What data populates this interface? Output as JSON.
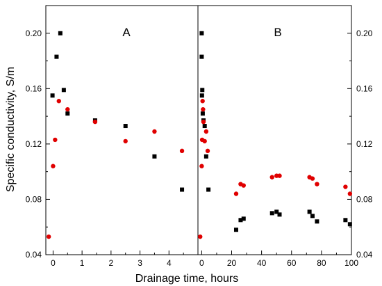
{
  "chart_data": {
    "type": "scatter",
    "xlabel": "Drainage time, hours",
    "ylabel": "Specific conductivity, S/m",
    "ylim": [
      0.04,
      0.22
    ],
    "yticks": [
      "0.04",
      "0.08",
      "0.12",
      "0.16",
      "0.20"
    ],
    "legend": "none",
    "grid": false,
    "colors": {
      "black_series": "#000000",
      "red_series": "#e00000"
    },
    "panels": [
      {
        "label": "A",
        "xlim": [
          -0.25,
          5.0
        ],
        "xticks": [
          "0",
          "1",
          "2",
          "3",
          "4"
        ],
        "series": [
          {
            "color": "#000000",
            "marker": "square",
            "points": [
              [
                -0.02,
                0.155
              ],
              [
                0.12,
                0.183
              ],
              [
                0.25,
                0.2
              ],
              [
                0.37,
                0.159
              ],
              [
                0.5,
                0.142
              ],
              [
                1.45,
                0.137
              ],
              [
                2.5,
                0.133
              ],
              [
                3.5,
                0.111
              ],
              [
                4.45,
                0.087
              ]
            ]
          },
          {
            "color": "#e00000",
            "marker": "circle",
            "points": [
              [
                -0.15,
                0.053
              ],
              [
                0.0,
                0.104
              ],
              [
                0.07,
                0.123
              ],
              [
                0.2,
                0.151
              ],
              [
                0.5,
                0.145
              ],
              [
                1.45,
                0.136
              ],
              [
                2.5,
                0.122
              ],
              [
                3.5,
                0.129
              ],
              [
                4.45,
                0.115
              ]
            ]
          }
        ]
      },
      {
        "label": "B",
        "xlim": [
          -2.5,
          100
        ],
        "xticks": [
          "0",
          "20",
          "40",
          "60",
          "80",
          "100"
        ],
        "series": [
          {
            "color": "#000000",
            "marker": "square",
            "points": [
              [
                0.0,
                0.2
              ],
              [
                0.0,
                0.183
              ],
              [
                0.2,
                0.155
              ],
              [
                0.4,
                0.159
              ],
              [
                0.7,
                0.142
              ],
              [
                1.2,
                0.137
              ],
              [
                2.0,
                0.133
              ],
              [
                3.0,
                0.111
              ],
              [
                4.5,
                0.087
              ],
              [
                23.0,
                0.058
              ],
              [
                26.0,
                0.065
              ],
              [
                28.0,
                0.066
              ],
              [
                47.0,
                0.07
              ],
              [
                50.0,
                0.071
              ],
              [
                52.0,
                0.069
              ],
              [
                72.0,
                0.071
              ],
              [
                74.0,
                0.068
              ],
              [
                77.0,
                0.064
              ],
              [
                96.0,
                0.065
              ],
              [
                99.0,
                0.062
              ]
            ]
          },
          {
            "color": "#e00000",
            "marker": "circle",
            "points": [
              [
                -1.0,
                0.053
              ],
              [
                0.0,
                0.104
              ],
              [
                0.3,
                0.123
              ],
              [
                0.6,
                0.151
              ],
              [
                0.9,
                0.145
              ],
              [
                1.2,
                0.136
              ],
              [
                2.0,
                0.122
              ],
              [
                3.0,
                0.129
              ],
              [
                4.0,
                0.115
              ],
              [
                23.0,
                0.084
              ],
              [
                26.0,
                0.091
              ],
              [
                28.0,
                0.09
              ],
              [
                47.0,
                0.096
              ],
              [
                50.0,
                0.097
              ],
              [
                52.0,
                0.097
              ],
              [
                72.0,
                0.096
              ],
              [
                74.0,
                0.095
              ],
              [
                77.0,
                0.091
              ],
              [
                96.0,
                0.089
              ],
              [
                99.0,
                0.084
              ]
            ]
          }
        ]
      }
    ]
  }
}
